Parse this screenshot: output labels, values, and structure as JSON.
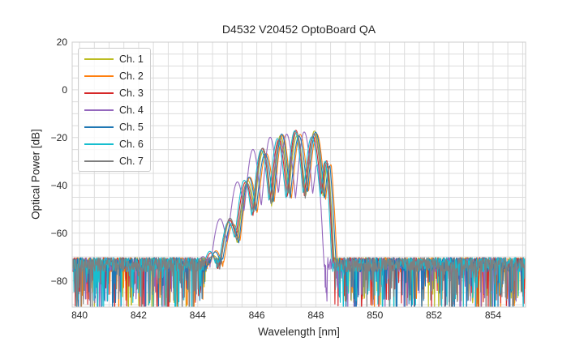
{
  "chart_data": {
    "type": "line",
    "title": "D4532 V20452 OptoBoard QA",
    "xlabel": "Wavelength [nm]",
    "ylabel": "Optical Power [dB]",
    "xlim": [
      839.75,
      855.1
    ],
    "ylim": [
      -91,
      20
    ],
    "x_ticks": [
      840,
      842,
      844,
      846,
      848,
      850,
      852,
      854
    ],
    "y_ticks": [
      20,
      0,
      -20,
      -40,
      -60,
      -80
    ],
    "grid": {
      "visible": true,
      "x_step_nm": 0.5,
      "y_step_db": 5
    },
    "legend_position": "upper left",
    "series": [
      {
        "name": "Ch. 1",
        "color": "#bcbd22",
        "wavelength_offset_nm": 0.03
      },
      {
        "name": "Ch. 2",
        "color": "#ff7f0e",
        "wavelength_offset_nm": 0.12
      },
      {
        "name": "Ch. 3",
        "color": "#d62728",
        "wavelength_offset_nm": -0.02
      },
      {
        "name": "Ch. 4",
        "color": "#9467bd",
        "wavelength_offset_nm": -0.32
      },
      {
        "name": "Ch. 5",
        "color": "#1f77b4",
        "wavelength_offset_nm": 0.08
      },
      {
        "name": "Ch. 6",
        "color": "#17becf",
        "wavelength_offset_nm": -0.06
      },
      {
        "name": "Ch. 7",
        "color": "#7f7f7f",
        "wavelength_offset_nm": 0.01
      }
    ],
    "spectrum_model": {
      "description": "Seven overlaid optical spectra: flat noise floor near -72 dB across 840-855 nm with downward noise spikes, and a passband of interference fringes between ~844.5 and ~848.6 nm peaking near -18 dB (Ch. 4 shifted ~0.3 nm to shorter wavelength).",
      "noise_floor_top_db": -70.3,
      "noise_floor_spread_db": 6,
      "noise_spike_chance": 0.13,
      "noise_spike_extra_db": 21,
      "fringe_period_nm": 0.58,
      "fringe_phase_peak_nm": 845.02,
      "fringe_depth_min_db": 7,
      "fringe_depth_max_db": 26,
      "fringe_depth_slope_db_per_nm": 8.5,
      "peak_power_db": -18,
      "passband_nm": [
        844.5,
        848.6
      ],
      "envelope_points": [
        [
          843.9,
          -90
        ],
        [
          844.3,
          -71
        ],
        [
          844.68,
          -65.5
        ],
        [
          845.02,
          -56
        ],
        [
          845.4,
          -45
        ],
        [
          845.75,
          -34
        ],
        [
          846.05,
          -27.5
        ],
        [
          846.4,
          -22.5
        ],
        [
          846.75,
          -19.8
        ],
        [
          847.15,
          -18.4
        ],
        [
          847.55,
          -18.0
        ],
        [
          847.95,
          -18.5
        ],
        [
          848.18,
          -18.2
        ],
        [
          848.32,
          -20
        ],
        [
          848.4,
          -27
        ],
        [
          848.48,
          -45
        ],
        [
          848.56,
          -62
        ],
        [
          848.64,
          -75
        ],
        [
          848.72,
          -88
        ]
      ],
      "sample_step_nm": 0.015
    },
    "styles": {
      "text_color": "#262626",
      "grid_color": "#dcdcdc",
      "spine_color": "#cccccc",
      "background": "#ffffff",
      "line_width": 1.1,
      "tick_font_px": 12
    }
  }
}
